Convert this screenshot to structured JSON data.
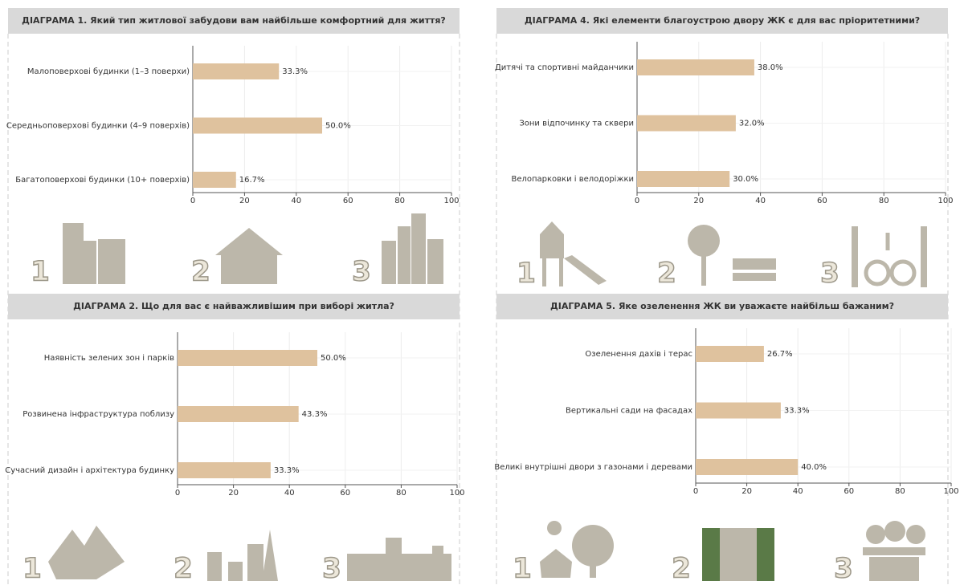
{
  "chart_data": [
    {
      "type": "bar",
      "orientation": "horizontal",
      "title": "ДІАГРАМА 1. Який тип житлової забудови вам найбільше комфортний для життя?",
      "categories": [
        "Малоповерхові будинки (1–3 поверхи)",
        "Середньоповерхові будинки (4–9 поверхів)",
        "Багатоповерхові будинки (10+ поверхів)"
      ],
      "values": [
        33.3,
        50.0,
        16.7
      ],
      "value_labels": [
        "33.3%",
        "50.0%",
        "16.7%"
      ],
      "color": "#dfc29e",
      "xlim": [
        0,
        100
      ],
      "xticks": [
        0,
        20,
        40,
        60,
        80,
        100
      ],
      "grid": true,
      "icons": [
        "1",
        "2",
        "3"
      ]
    },
    {
      "type": "bar",
      "orientation": "horizontal",
      "title": "ДІАГРАМА 2. Що для вас є найважливішим при виборі житла?",
      "categories": [
        "Наявність зелених зон і парків",
        "Розвинена інфраструктура поблизу",
        "Сучасний дизайн і архітектура будинку"
      ],
      "values": [
        50.0,
        43.3,
        33.3
      ],
      "value_labels": [
        "50.0%",
        "43.3%",
        "33.3%"
      ],
      "color": "#dfc29e",
      "xlim": [
        0,
        100
      ],
      "xticks": [
        0,
        20,
        40,
        60,
        80,
        100
      ],
      "grid": true,
      "icons": [
        "1",
        "2",
        "3"
      ]
    },
    {
      "type": "bar",
      "orientation": "horizontal",
      "title": "ДІАГРАМА 4. Які елементи благоустрою двору ЖК є для вас пріоритетними?",
      "categories": [
        "Дитячі та спортивні майданчики",
        "Зони відпочинку та сквери",
        "Велопарковки і велодоріжки"
      ],
      "values": [
        38.0,
        32.0,
        30.0
      ],
      "value_labels": [
        "38.0%",
        "32.0%",
        "30.0%"
      ],
      "color": "#dfc29e",
      "xlim": [
        0,
        100
      ],
      "xticks": [
        0,
        20,
        40,
        60,
        80,
        100
      ],
      "grid": true,
      "icons": [
        "1",
        "2",
        "3"
      ]
    },
    {
      "type": "bar",
      "orientation": "horizontal",
      "title": "ДІАГРАМА 5. Яке озеленення ЖК ви уважаєте найбільш бажаним?",
      "categories": [
        "Озеленення дахів і терас",
        "Вертикальні сади на фасадах",
        "Великі внутрішні двори з газонами і деревами"
      ],
      "values": [
        26.7,
        33.3,
        40.0
      ],
      "value_labels": [
        "26.7%",
        "33.3%",
        "40.0%"
      ],
      "color": "#dfc29e",
      "xlim": [
        0,
        100
      ],
      "xticks": [
        0,
        20,
        40,
        60,
        80,
        100
      ],
      "grid": true,
      "icons": [
        "1",
        "2",
        "3"
      ]
    }
  ]
}
